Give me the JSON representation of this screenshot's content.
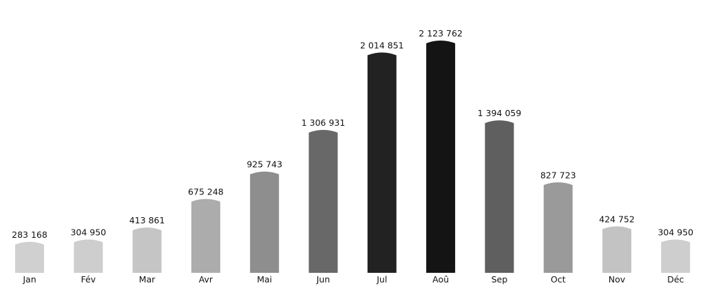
{
  "chart_data": {
    "type": "bar",
    "title": "",
    "xlabel": "",
    "ylabel": "",
    "categories": [
      "Jan",
      "Fév",
      "Mar",
      "Avr",
      "Mai",
      "Jun",
      "Jul",
      "Aoû",
      "Sep",
      "Oct",
      "Nov",
      "Déc"
    ],
    "values": [
      283168,
      304950,
      413861,
      675248,
      925743,
      1306931,
      2014851,
      2123762,
      1394059,
      827723,
      424752,
      304950
    ],
    "value_labels": [
      "283 168",
      "304 950",
      "413 861",
      "675 248",
      "925 743",
      "1 306 931",
      "2 014 851",
      "2 123 762",
      "1 394 059",
      "827 723",
      "424 752",
      "304 950"
    ],
    "bar_colors": [
      "#d0d0d0",
      "#cecece",
      "#c5c5c5",
      "#acacac",
      "#8e8e8e",
      "#686868",
      "#222222",
      "#141414",
      "#5f5f5f",
      "#9a9a9a",
      "#c3c3c3",
      "#cecece"
    ],
    "ylim": [
      0,
      2123762
    ],
    "grid": false,
    "legend": "none",
    "axis_visible": false
  }
}
